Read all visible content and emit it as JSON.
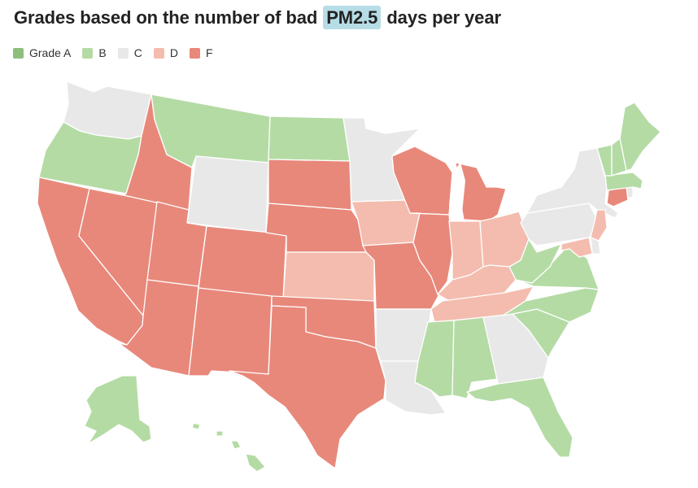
{
  "title": {
    "before": "Grades based on the number of bad",
    "highlight": "PM2.5",
    "after": "days per year"
  },
  "legend": [
    {
      "grade": "A",
      "label": "Grade A",
      "color": "#8cc07a"
    },
    {
      "grade": "B",
      "label": "B",
      "color": "#b4dba4"
    },
    {
      "grade": "C",
      "label": "C",
      "color": "#e8e8e8"
    },
    {
      "grade": "D",
      "label": "D",
      "color": "#f4bcae"
    },
    {
      "grade": "F",
      "label": "F",
      "color": "#e8887a"
    }
  ],
  "states": [
    {
      "id": "WA",
      "grade": "C"
    },
    {
      "id": "OR",
      "grade": "B"
    },
    {
      "id": "CA",
      "grade": "F"
    },
    {
      "id": "NV",
      "grade": "F"
    },
    {
      "id": "ID",
      "grade": "F"
    },
    {
      "id": "MT",
      "grade": "B"
    },
    {
      "id": "WY",
      "grade": "C"
    },
    {
      "id": "UT",
      "grade": "F"
    },
    {
      "id": "AZ",
      "grade": "F"
    },
    {
      "id": "CO",
      "grade": "F"
    },
    {
      "id": "NM",
      "grade": "F"
    },
    {
      "id": "ND",
      "grade": "B"
    },
    {
      "id": "SD",
      "grade": "F"
    },
    {
      "id": "NE",
      "grade": "F"
    },
    {
      "id": "KS",
      "grade": "D"
    },
    {
      "id": "OK",
      "grade": "F"
    },
    {
      "id": "TX",
      "grade": "F"
    },
    {
      "id": "MN",
      "grade": "C"
    },
    {
      "id": "IA",
      "grade": "D"
    },
    {
      "id": "MO",
      "grade": "F"
    },
    {
      "id": "AR",
      "grade": "C"
    },
    {
      "id": "LA",
      "grade": "C"
    },
    {
      "id": "WI",
      "grade": "F"
    },
    {
      "id": "IL",
      "grade": "F"
    },
    {
      "id": "MI",
      "grade": "F"
    },
    {
      "id": "IN",
      "grade": "D"
    },
    {
      "id": "OH",
      "grade": "D"
    },
    {
      "id": "KY",
      "grade": "D"
    },
    {
      "id": "TN",
      "grade": "D"
    },
    {
      "id": "MS",
      "grade": "B"
    },
    {
      "id": "AL",
      "grade": "B"
    },
    {
      "id": "GA",
      "grade": "C"
    },
    {
      "id": "FL",
      "grade": "B"
    },
    {
      "id": "SC",
      "grade": "B"
    },
    {
      "id": "NC",
      "grade": "B"
    },
    {
      "id": "VA",
      "grade": "B"
    },
    {
      "id": "WV",
      "grade": "B"
    },
    {
      "id": "PA",
      "grade": "C"
    },
    {
      "id": "NY",
      "grade": "C"
    },
    {
      "id": "VT",
      "grade": "B"
    },
    {
      "id": "NH",
      "grade": "B"
    },
    {
      "id": "ME",
      "grade": "B"
    },
    {
      "id": "MA",
      "grade": "B"
    },
    {
      "id": "CT",
      "grade": "F"
    },
    {
      "id": "RI",
      "grade": "C"
    },
    {
      "id": "NJ",
      "grade": "D"
    },
    {
      "id": "DE",
      "grade": "C"
    },
    {
      "id": "MD",
      "grade": "D"
    },
    {
      "id": "AK",
      "grade": "B"
    },
    {
      "id": "HI",
      "grade": "B"
    }
  ]
}
